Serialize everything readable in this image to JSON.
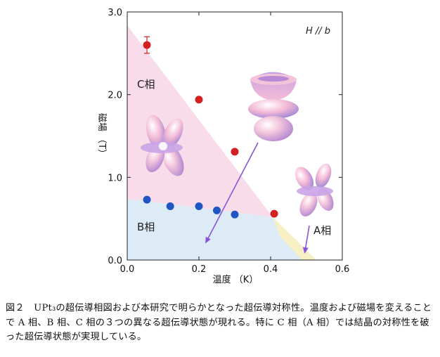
{
  "chart_data": {
    "type": "scatter",
    "xlabel": "温度 （K）",
    "ylabel": "磁場 （T）",
    "xlim": [
      0.0,
      0.6
    ],
    "ylim": [
      0.0,
      3.0
    ],
    "xticks": [
      "0.0",
      "0.2",
      "0.4",
      "0.6"
    ],
    "xtick_values": [
      0.0,
      0.2,
      0.4,
      0.6
    ],
    "yticks": [
      "0.0",
      "1.0",
      "2.0",
      "3.0"
    ],
    "ytick_values": [
      0.0,
      1.0,
      2.0,
      3.0
    ],
    "annotation": "H // b",
    "regions": [
      {
        "name": "C相",
        "color": "#f9dcea"
      },
      {
        "name": "B相",
        "color": "#dcebf6"
      },
      {
        "name": "A相",
        "color": "#f6f0c4"
      }
    ],
    "series": [
      {
        "color": "#d42020",
        "x": [
          0.055,
          0.2,
          0.3,
          0.41
        ],
        "y": [
          2.6,
          1.94,
          1.31,
          0.56
        ],
        "error": [
          0.1,
          0,
          0,
          0
        ]
      },
      {
        "color": "#1f56c4",
        "x": [
          0.055,
          0.12,
          0.2,
          0.25,
          0.3
        ],
        "y": [
          0.73,
          0.65,
          0.65,
          0.6,
          0.55
        ]
      }
    ],
    "grid": false,
    "legend": "none"
  },
  "caption": "図２　UPt₃の超伝導相図および本研究で明らかとなった超伝導対称性。温度および磁場を変えることで A 相、B 相、C 相の３つの異なる超伝導状態が現れる。特に C 相（A 相）では結晶の対称性を破った超伝導状態が実現している。"
}
